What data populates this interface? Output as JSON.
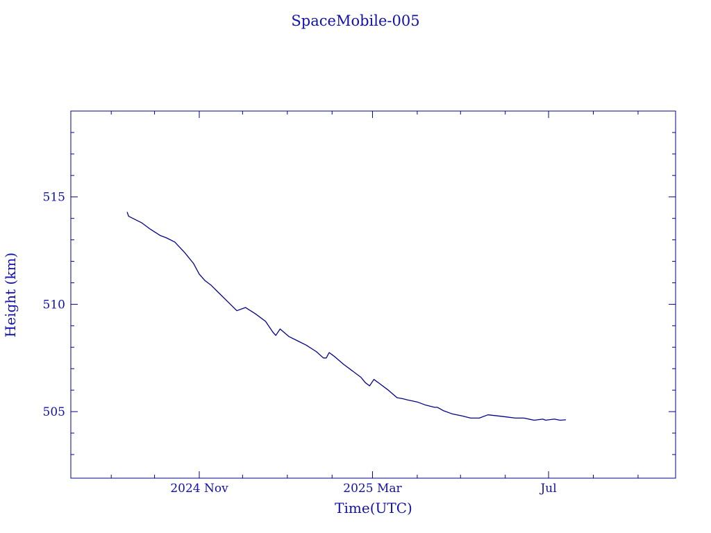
{
  "chart_data": {
    "type": "line",
    "title": "SpaceMobile-005",
    "xlabel": "Time(UTC)",
    "ylabel": "Height (km)",
    "xlim": [
      "2024-08-04",
      "2025-09-27"
    ],
    "ylim": [
      501.9,
      519.0
    ],
    "x_ticks_labeled": [
      {
        "date": "2024-11-01",
        "label": "2024 Nov"
      },
      {
        "date": "2025-03-01",
        "label": "2025 Mar"
      },
      {
        "date": "2025-07-01",
        "label": "Jul"
      }
    ],
    "x_ticks_minor": [
      "2024-09-01",
      "2024-10-01",
      "2024-12-01",
      "2025-01-01",
      "2025-02-01",
      "2025-04-01",
      "2025-05-01",
      "2025-06-01",
      "2025-08-01",
      "2025-09-01"
    ],
    "y_ticks_labeled": [
      505,
      510,
      515
    ],
    "y_ticks_minor": [
      503,
      504,
      506,
      507,
      508,
      509,
      511,
      512,
      513,
      514,
      516,
      517,
      518
    ],
    "grid": false,
    "color": "#00008b",
    "series": [
      {
        "x": [
          "2024-09-12",
          "2024-09-13",
          "2024-09-16",
          "2024-09-22",
          "2024-09-28",
          "2024-10-05",
          "2024-10-09",
          "2024-10-15",
          "2024-10-22",
          "2024-10-28",
          "2024-11-01",
          "2024-11-05",
          "2024-11-09",
          "2024-11-15",
          "2024-11-21",
          "2024-11-27",
          "2024-12-03",
          "2024-12-10",
          "2024-12-17",
          "2024-12-22",
          "2024-12-24",
          "2024-12-27",
          "2025-01-02",
          "2025-01-08",
          "2025-01-14",
          "2025-01-21",
          "2025-01-26",
          "2025-01-28",
          "2025-01-30",
          "2025-02-03",
          "2025-02-09",
          "2025-02-15",
          "2025-02-21",
          "2025-02-24",
          "2025-02-27",
          "2025-03-02",
          "2025-03-06",
          "2025-03-12",
          "2025-03-18",
          "2025-03-22",
          "2025-03-25",
          "2025-04-01",
          "2025-04-07",
          "2025-04-13",
          "2025-04-15",
          "2025-04-19",
          "2025-04-25",
          "2025-05-02",
          "2025-05-08",
          "2025-05-14",
          "2025-05-20",
          "2025-05-27",
          "2025-06-02",
          "2025-06-08",
          "2025-06-14",
          "2025-06-21",
          "2025-06-27",
          "2025-06-29",
          "2025-07-01",
          "2025-07-05",
          "2025-07-09",
          "2025-07-13"
        ],
        "y": [
          514.3,
          514.1,
          514.0,
          513.8,
          513.5,
          513.2,
          513.1,
          512.9,
          512.4,
          511.9,
          511.4,
          511.1,
          510.9,
          510.5,
          510.1,
          509.7,
          509.85,
          509.55,
          509.2,
          508.7,
          508.55,
          508.85,
          508.5,
          508.3,
          508.1,
          507.8,
          507.5,
          507.5,
          507.75,
          507.55,
          507.2,
          506.9,
          506.6,
          506.35,
          506.2,
          506.5,
          506.3,
          506.0,
          505.65,
          505.6,
          505.55,
          505.45,
          505.3,
          505.2,
          505.2,
          505.05,
          504.9,
          504.8,
          504.7,
          504.7,
          504.85,
          504.8,
          504.75,
          504.7,
          504.7,
          504.6,
          504.65,
          504.6,
          504.62,
          504.65,
          504.6,
          504.62
        ]
      }
    ]
  }
}
